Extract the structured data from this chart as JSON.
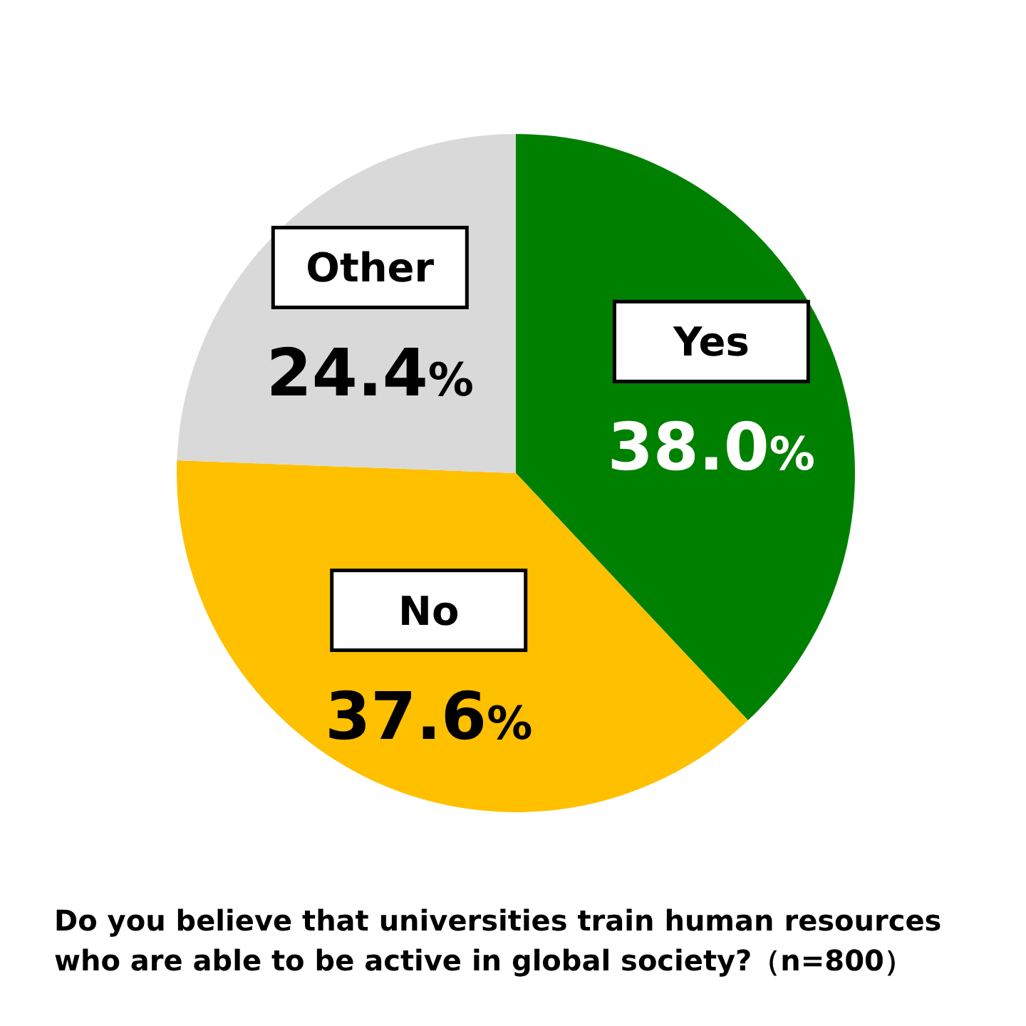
{
  "chart_data": {
    "type": "pie",
    "title": "Do you believe that universities train human resources who are able to be active in global society?（n=800）",
    "categories": [
      "Yes",
      "No",
      "Other"
    ],
    "values": [
      38.0,
      37.6,
      24.4
    ],
    "colors": [
      "#008000",
      "#ffc000",
      "#d9d9d9"
    ],
    "value_labels": [
      "38.0%",
      "37.6%",
      "24.4%"
    ]
  }
}
